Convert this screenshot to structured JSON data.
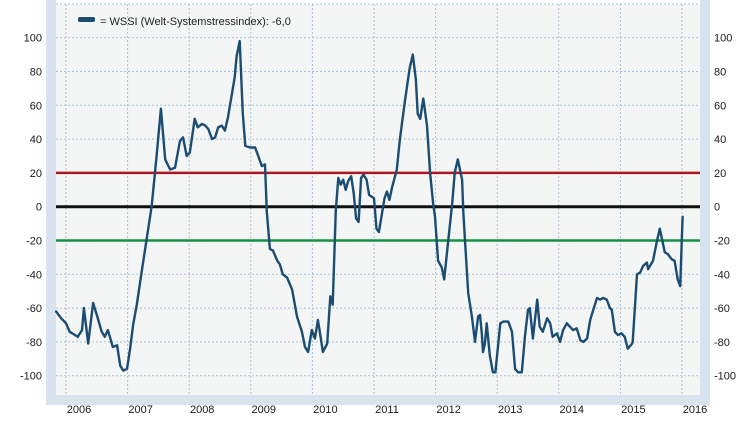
{
  "legend": {
    "label": "= WSSI (Welt-Systemstressindex): -6,0",
    "swatch_color": "#1b4c72"
  },
  "chart_data": {
    "type": "line",
    "title": "",
    "xlabel": "",
    "ylabel": "",
    "grid": true,
    "legend_position": "top-left",
    "xlim": [
      2005.82,
      2016.29
    ],
    "ylim": [
      -111,
      120
    ],
    "x_ticks": [
      "2006",
      "2007",
      "2008",
      "2009",
      "2010",
      "2011",
      "2012",
      "2013",
      "2014",
      "2015",
      "2016"
    ],
    "y_ticks_left": [
      "100",
      "80",
      "60",
      "40",
      "20",
      "0",
      "-20",
      "-40",
      "-60",
      "-80",
      "-100"
    ],
    "y_ticks_right": [
      "100",
      "80",
      "60",
      "40",
      "20",
      "0",
      "-20",
      "-40",
      "-60",
      "-80",
      "-100"
    ],
    "y_tick_values": [
      100,
      80,
      60,
      40,
      20,
      0,
      -20,
      -40,
      -60,
      -80,
      -100
    ],
    "x_tick_values": [
      2006,
      2007,
      2008,
      2009,
      2010,
      2011,
      2012,
      2013,
      2014,
      2015,
      2016
    ],
    "reference_lines": [
      {
        "name": "upper-threshold",
        "value": 20,
        "color": "#b01622",
        "width": 2.5
      },
      {
        "name": "zero-line",
        "value": 0,
        "color": "#101010",
        "width": 3
      },
      {
        "name": "lower-threshold",
        "value": -20,
        "color": "#159245",
        "width": 2.5
      }
    ],
    "colors": {
      "series": "#1b4c72",
      "grid": "#a9c0d4",
      "band": "#d9e3f0",
      "plot_bg": "#f4f5f5",
      "label_text": "#1a1a1a"
    },
    "series": [
      {
        "name": "WSSI (Welt-Systemstressindex)",
        "current_value": "-6,0",
        "color": "#1b4c72",
        "points": [
          [
            2005.84,
            -62
          ],
          [
            2005.92,
            -66
          ],
          [
            2006.0,
            -69
          ],
          [
            2006.06,
            -74
          ],
          [
            2006.15,
            -76
          ],
          [
            2006.19,
            -77
          ],
          [
            2006.26,
            -73
          ],
          [
            2006.29,
            -60
          ],
          [
            2006.36,
            -81
          ],
          [
            2006.44,
            -57
          ],
          [
            2006.5,
            -64
          ],
          [
            2006.58,
            -74
          ],
          [
            2006.63,
            -77
          ],
          [
            2006.68,
            -73
          ],
          [
            2006.76,
            -83
          ],
          [
            2006.83,
            -82
          ],
          [
            2006.88,
            -94
          ],
          [
            2006.93,
            -97
          ],
          [
            2006.99,
            -96
          ],
          [
            2007.04,
            -84
          ],
          [
            2007.09,
            -70
          ],
          [
            2007.15,
            -58
          ],
          [
            2007.23,
            -38
          ],
          [
            2007.31,
            -19
          ],
          [
            2007.39,
            0
          ],
          [
            2007.47,
            30
          ],
          [
            2007.54,
            58
          ],
          [
            2007.61,
            28
          ],
          [
            2007.69,
            22
          ],
          [
            2007.77,
            23
          ],
          [
            2007.85,
            39
          ],
          [
            2007.9,
            41
          ],
          [
            2007.96,
            30
          ],
          [
            2008.01,
            32
          ],
          [
            2008.09,
            52
          ],
          [
            2008.14,
            47
          ],
          [
            2008.21,
            49
          ],
          [
            2008.26,
            48
          ],
          [
            2008.31,
            46
          ],
          [
            2008.37,
            40
          ],
          [
            2008.42,
            41
          ],
          [
            2008.47,
            47
          ],
          [
            2008.53,
            48
          ],
          [
            2008.58,
            45
          ],
          [
            2008.63,
            53
          ],
          [
            2008.69,
            66
          ],
          [
            2008.74,
            77
          ],
          [
            2008.77,
            89
          ],
          [
            2008.82,
            98
          ],
          [
            2008.87,
            55
          ],
          [
            2008.91,
            36
          ],
          [
            2008.99,
            35
          ],
          [
            2009.07,
            35
          ],
          [
            2009.1,
            32
          ],
          [
            2009.18,
            24
          ],
          [
            2009.23,
            25
          ],
          [
            2009.26,
            -3
          ],
          [
            2009.31,
            -25
          ],
          [
            2009.36,
            -26
          ],
          [
            2009.43,
            -32
          ],
          [
            2009.47,
            -34
          ],
          [
            2009.52,
            -40
          ],
          [
            2009.59,
            -42
          ],
          [
            2009.67,
            -49
          ],
          [
            2009.75,
            -65
          ],
          [
            2009.83,
            -74
          ],
          [
            2009.88,
            -83
          ],
          [
            2009.93,
            -86
          ],
          [
            2009.99,
            -73
          ],
          [
            2010.04,
            -78
          ],
          [
            2010.09,
            -67
          ],
          [
            2010.12,
            -74
          ],
          [
            2010.17,
            -86
          ],
          [
            2010.24,
            -81
          ],
          [
            2010.29,
            -53
          ],
          [
            2010.33,
            -58
          ],
          [
            2010.38,
            -2
          ],
          [
            2010.42,
            17
          ],
          [
            2010.46,
            13
          ],
          [
            2010.5,
            16
          ],
          [
            2010.54,
            10
          ],
          [
            2010.58,
            15
          ],
          [
            2010.63,
            18
          ],
          [
            2010.67,
            8
          ],
          [
            2010.71,
            -7
          ],
          [
            2010.75,
            -9
          ],
          [
            2010.79,
            17
          ],
          [
            2010.83,
            19
          ],
          [
            2010.88,
            16
          ],
          [
            2010.92,
            7
          ],
          [
            2011.0,
            5
          ],
          [
            2011.04,
            -13
          ],
          [
            2011.08,
            -15
          ],
          [
            2011.17,
            5
          ],
          [
            2011.21,
            9
          ],
          [
            2011.25,
            4
          ],
          [
            2011.29,
            11
          ],
          [
            2011.37,
            22
          ],
          [
            2011.42,
            40
          ],
          [
            2011.5,
            62
          ],
          [
            2011.58,
            82
          ],
          [
            2011.63,
            90
          ],
          [
            2011.68,
            75
          ],
          [
            2011.71,
            55
          ],
          [
            2011.75,
            52
          ],
          [
            2011.8,
            64
          ],
          [
            2011.86,
            48
          ],
          [
            2011.91,
            20
          ],
          [
            2011.96,
            2
          ],
          [
            2011.99,
            -6
          ],
          [
            2012.04,
            -32
          ],
          [
            2012.1,
            -36
          ],
          [
            2012.14,
            -43
          ],
          [
            2012.2,
            -22
          ],
          [
            2012.27,
            2
          ],
          [
            2012.31,
            20
          ],
          [
            2012.36,
            28
          ],
          [
            2012.43,
            16
          ],
          [
            2012.45,
            -3
          ],
          [
            2012.48,
            -22
          ],
          [
            2012.53,
            -51
          ],
          [
            2012.59,
            -65
          ],
          [
            2012.64,
            -80
          ],
          [
            2012.69,
            -65
          ],
          [
            2012.72,
            -64
          ],
          [
            2012.75,
            -75
          ],
          [
            2012.77,
            -86
          ],
          [
            2012.8,
            -81
          ],
          [
            2012.83,
            -69
          ],
          [
            2012.88,
            -88
          ],
          [
            2012.93,
            -98
          ],
          [
            2012.97,
            -98
          ],
          [
            2013.05,
            -69
          ],
          [
            2013.1,
            -68
          ],
          [
            2013.18,
            -68
          ],
          [
            2013.24,
            -74
          ],
          [
            2013.29,
            -96
          ],
          [
            2013.34,
            -98
          ],
          [
            2013.4,
            -98
          ],
          [
            2013.45,
            -77
          ],
          [
            2013.5,
            -61
          ],
          [
            2013.53,
            -60
          ],
          [
            2013.58,
            -78
          ],
          [
            2013.65,
            -55
          ],
          [
            2013.69,
            -71
          ],
          [
            2013.74,
            -74
          ],
          [
            2013.81,
            -66
          ],
          [
            2013.86,
            -69
          ],
          [
            2013.9,
            -77
          ],
          [
            2013.97,
            -75
          ],
          [
            2014.02,
            -80
          ],
          [
            2014.07,
            -73
          ],
          [
            2014.13,
            -69
          ],
          [
            2014.18,
            -71
          ],
          [
            2014.23,
            -73
          ],
          [
            2014.29,
            -72
          ],
          [
            2014.35,
            -79
          ],
          [
            2014.4,
            -80
          ],
          [
            2014.46,
            -78
          ],
          [
            2014.51,
            -67
          ],
          [
            2014.56,
            -61
          ],
          [
            2014.62,
            -54
          ],
          [
            2014.67,
            -55
          ],
          [
            2014.72,
            -54
          ],
          [
            2014.78,
            -55
          ],
          [
            2014.83,
            -60
          ],
          [
            2014.86,
            -61
          ],
          [
            2014.91,
            -74
          ],
          [
            2014.96,
            -76
          ],
          [
            2015.02,
            -75
          ],
          [
            2015.07,
            -77
          ],
          [
            2015.12,
            -84
          ],
          [
            2015.19,
            -81
          ],
          [
            2015.2,
            -80
          ],
          [
            2015.27,
            -40
          ],
          [
            2015.32,
            -39
          ],
          [
            2015.37,
            -35
          ],
          [
            2015.43,
            -33
          ],
          [
            2015.45,
            -37
          ],
          [
            2015.53,
            -32
          ],
          [
            2015.59,
            -21
          ],
          [
            2015.64,
            -13
          ],
          [
            2015.72,
            -27
          ],
          [
            2015.77,
            -28
          ],
          [
            2015.83,
            -31
          ],
          [
            2015.88,
            -32
          ],
          [
            2015.93,
            -43
          ],
          [
            2015.97,
            -47
          ],
          [
            2016.01,
            -6
          ]
        ]
      }
    ]
  }
}
